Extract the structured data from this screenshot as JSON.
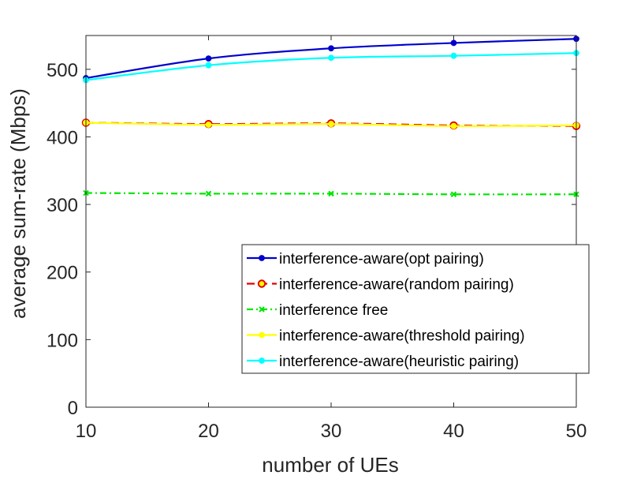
{
  "chart_data": {
    "type": "line",
    "title": "",
    "xlabel": "number of UEs",
    "ylabel": "average sum-rate (Mbps)",
    "x": [
      10,
      20,
      30,
      40,
      50
    ],
    "xlim": [
      10,
      50
    ],
    "ylim": [
      0,
      550
    ],
    "xticks": [
      10,
      20,
      30,
      40,
      50
    ],
    "yticks": [
      0,
      100,
      200,
      300,
      400,
      500
    ],
    "grid": false,
    "legend_position": "lower-right",
    "series": [
      {
        "name": "interference-aware(opt pairing)",
        "values": [
          487,
          516,
          531,
          539,
          545
        ],
        "color": "#0000cd",
        "dash": "solid",
        "marker": "dot"
      },
      {
        "name": "interference-aware(random pairing)",
        "values": [
          421,
          419,
          420,
          417,
          416
        ],
        "color": "#e60000",
        "dash": "dashed",
        "marker": "circle"
      },
      {
        "name": "interference free",
        "values": [
          317,
          316,
          316,
          315,
          315
        ],
        "color": "#00e600",
        "dash": "dashdot",
        "marker": "x"
      },
      {
        "name": "interference-aware(threshold pairing)",
        "values": [
          421,
          418,
          419,
          416,
          417
        ],
        "color": "#ffff00",
        "dash": "solid",
        "marker": "dot"
      },
      {
        "name": "interference-aware(heuristic pairing)",
        "values": [
          484,
          506,
          517,
          520,
          524
        ],
        "color": "#00ffff",
        "dash": "solid",
        "marker": "dot"
      }
    ]
  }
}
